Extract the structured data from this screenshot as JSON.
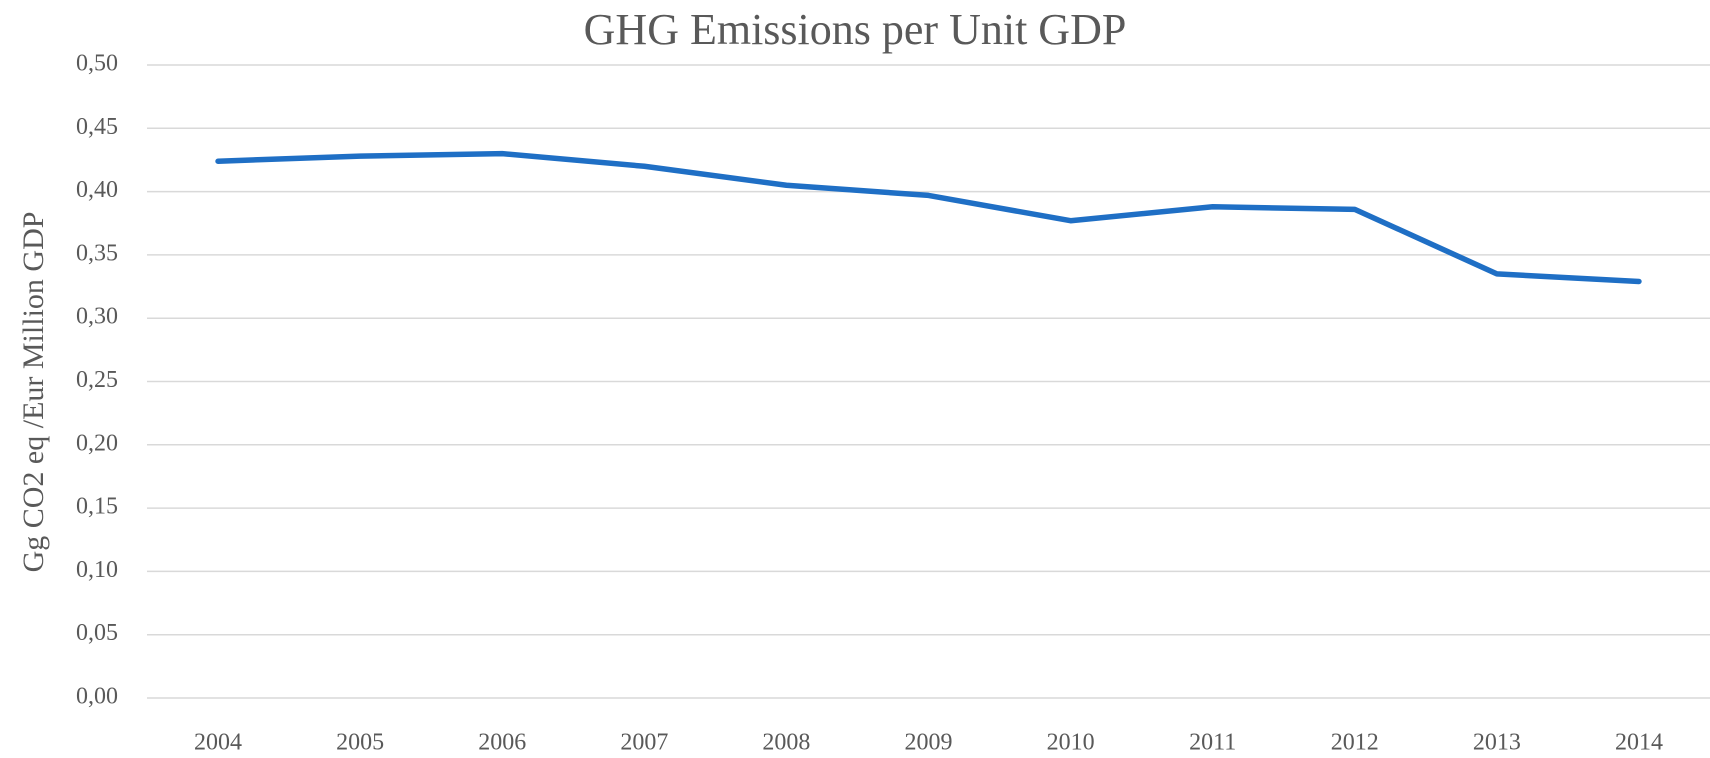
{
  "chart_data": {
    "type": "line",
    "title": "GHG Emissions per Unit GDP",
    "y_label": "Gg CO2 eq /Eur Million GDP",
    "categories": [
      "2004",
      "2005",
      "2006",
      "2007",
      "2008",
      "2009",
      "2010",
      "2011",
      "2012",
      "2013",
      "2014"
    ],
    "series": [
      {
        "color": "#1f6fc5",
        "values": [
          0.424,
          0.428,
          0.43,
          0.42,
          0.405,
          0.397,
          0.377,
          0.388,
          0.386,
          0.335,
          0.329
        ]
      }
    ],
    "ylim": [
      0,
      0.5
    ],
    "yticks": [
      {
        "value": 0,
        "label": "0,00"
      },
      {
        "value": 0.05,
        "label": "0,05"
      },
      {
        "value": 0.1,
        "label": "0,10"
      },
      {
        "value": 0.15,
        "label": "0,15"
      },
      {
        "value": 0.2,
        "label": "0,20"
      },
      {
        "value": 0.25,
        "label": "0,25"
      },
      {
        "value": 0.3,
        "label": "0,30"
      },
      {
        "value": 0.35,
        "label": "0,35"
      },
      {
        "value": 0.4,
        "label": "0,40"
      },
      {
        "value": 0.45,
        "label": "0,45"
      },
      {
        "value": 0.5,
        "label": "0,50"
      }
    ],
    "grid": true
  }
}
